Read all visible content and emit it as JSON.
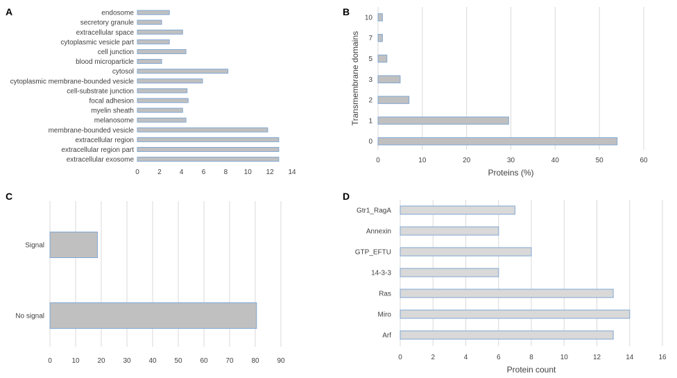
{
  "colors": {
    "bar_fill": "#c0c0c0",
    "bar_fill_light": "#d9d9d9",
    "bar_stroke": "#7fa7d3",
    "grid": "#d9d9d9",
    "axis": "#bfbfbf",
    "text": "#404040"
  },
  "chart_data": [
    {
      "panel": "A",
      "type": "bar",
      "orientation": "horizontal",
      "categories": [
        "endosome",
        "secretory granule",
        "extracellular space",
        "cytoplasmic vesicle part",
        "cell junction",
        "blood microparticle",
        "cytosol",
        "cytoplasmic membrane-bounded vesicle",
        "cell-substrate junction",
        "focal adhesion",
        "myelin sheath",
        "melanosome",
        "membrane-bounded vesicle",
        "extracellular region",
        "extracellular region part",
        "extracellular exosome"
      ],
      "values": [
        2.9,
        2.2,
        4.1,
        2.9,
        4.4,
        2.2,
        8.2,
        5.9,
        4.5,
        4.6,
        4.1,
        4.4,
        11.8,
        12.8,
        12.8,
        12.8
      ],
      "ticks": [
        "0",
        "2",
        "4",
        "6",
        "8",
        "10",
        "12",
        "14"
      ],
      "xlim": [
        0,
        14
      ],
      "grid": false,
      "xlabel": "",
      "ylabel": ""
    },
    {
      "panel": "B",
      "type": "bar",
      "orientation": "horizontal",
      "categories": [
        "10",
        "7",
        "5",
        "3",
        "2",
        "1",
        "0"
      ],
      "values": [
        1,
        1,
        2,
        5,
        7,
        29.5,
        54
      ],
      "ticks": [
        "0",
        "10",
        "20",
        "30",
        "40",
        "50",
        "60"
      ],
      "xlim": [
        0,
        60
      ],
      "grid": true,
      "xlabel": "Proteins (%)",
      "ylabel": "Transmembrane domains"
    },
    {
      "panel": "C",
      "type": "bar",
      "orientation": "horizontal",
      "categories": [
        "Signal",
        "No signal"
      ],
      "values": [
        18.5,
        80.5
      ],
      "ticks": [
        "0",
        "10",
        "20",
        "30",
        "40",
        "50",
        "60",
        "70",
        "80",
        "90"
      ],
      "xlim": [
        0,
        90
      ],
      "grid": true,
      "xlabel": "",
      "ylabel": ""
    },
    {
      "panel": "D",
      "type": "bar",
      "orientation": "horizontal",
      "categories": [
        "Gtr1_RagA",
        "Annexin",
        "GTP_EFTU",
        "14-3-3",
        "Ras",
        "Miro",
        "Arf"
      ],
      "values": [
        7,
        6,
        8,
        6,
        13,
        14,
        13
      ],
      "ticks": [
        "0",
        "2",
        "4",
        "6",
        "8",
        "10",
        "12",
        "14",
        "16"
      ],
      "xlim": [
        0,
        16
      ],
      "grid": true,
      "xlabel": "Protein count",
      "ylabel": ""
    }
  ]
}
